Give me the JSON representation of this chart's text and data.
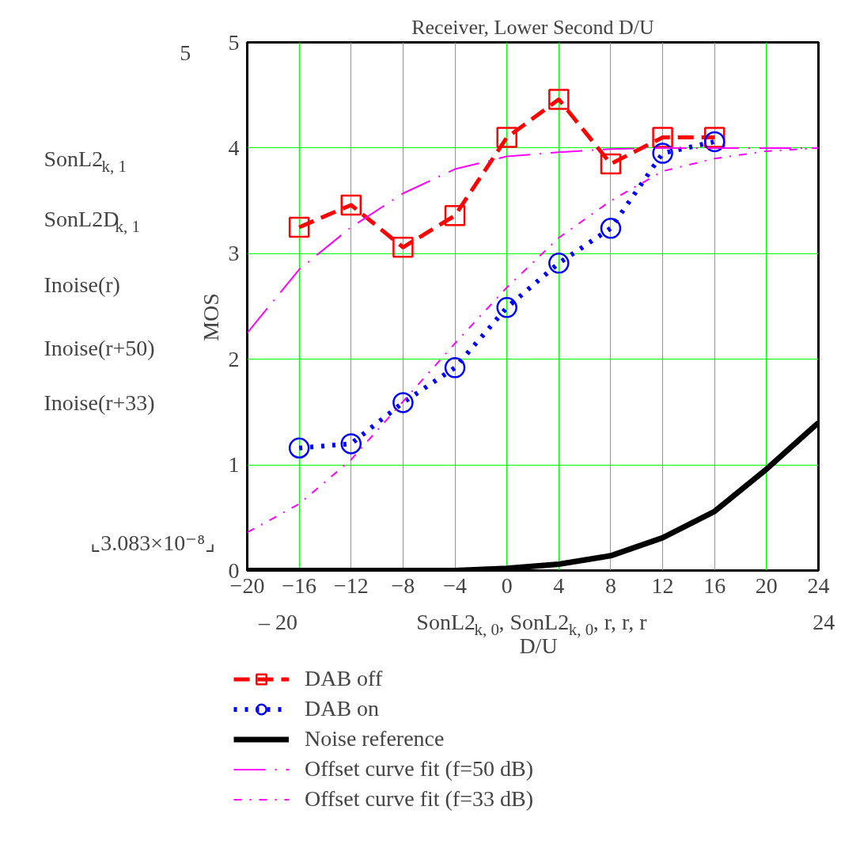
{
  "chart_data": {
    "type": "line",
    "title": "Receiver, Lower Second D/U",
    "xlabel": "D/U",
    "ylabel": "MOS",
    "x": [
      -16,
      -12,
      -8,
      -4,
      0,
      4,
      8,
      12,
      16
    ],
    "xlim": [
      -20,
      24
    ],
    "xticks": [
      {
        "value": -20,
        "label": "−20"
      },
      {
        "value": -16,
        "label": "−16"
      },
      {
        "value": -12,
        "label": "−12"
      },
      {
        "value": -8,
        "label": "−8"
      },
      {
        "value": -4,
        "label": "−4"
      },
      0,
      4,
      8,
      12,
      16,
      20,
      24
    ],
    "ylim": [
      0,
      5
    ],
    "yticks": [
      0,
      1,
      2,
      3,
      4,
      5
    ],
    "grid": true,
    "legend": "bottom",
    "series": [
      {
        "name": "DAB off",
        "color": "#ff0000",
        "marker": "square",
        "line_style": "dashed",
        "values": [
          3.25,
          3.46,
          3.06,
          3.36,
          4.1,
          4.46,
          3.85,
          4.1,
          4.1
        ]
      },
      {
        "name": "DAB on",
        "color": "#0000ff",
        "marker": "circle",
        "line_style": "dotted",
        "values": [
          1.16,
          1.2,
          1.59,
          1.92,
          2.49,
          2.91,
          3.24,
          3.95,
          4.06
        ]
      },
      {
        "name": "Noise reference",
        "color": "#000000",
        "marker": "none",
        "line_style": "solid",
        "x": [
          -20,
          -16,
          -12,
          -8,
          -4,
          0,
          4,
          8,
          12,
          16,
          20,
          24
        ],
        "values": [
          0,
          0,
          0,
          0,
          0,
          0.02,
          0.06,
          0.14,
          0.31,
          0.56,
          0.96,
          1.4
        ]
      },
      {
        "name": "Offset curve fit (f=50 dB)",
        "color": "#ff00ff",
        "marker": "none",
        "line_style": "dashed",
        "x": [
          -20,
          -16,
          -12,
          -8,
          -4,
          0,
          4,
          8,
          12,
          16,
          20,
          24
        ],
        "values": [
          2.25,
          2.85,
          3.25,
          3.57,
          3.8,
          3.92,
          3.96,
          3.99,
          4.0,
          4.0,
          4.0,
          4.0
        ]
      },
      {
        "name": "Offset curve fit (f=33 dB)",
        "color": "#ff00ff",
        "marker": "none",
        "line_style": "dashed",
        "x": [
          -20,
          -16,
          -12,
          -8,
          -4,
          0,
          4,
          8,
          12,
          16,
          20,
          24
        ],
        "values": [
          0.36,
          0.63,
          1.05,
          1.6,
          2.15,
          2.68,
          3.15,
          3.5,
          3.78,
          3.9,
          3.97,
          4.0
        ]
      }
    ],
    "annotations": [
      "5",
      "⌞3.083×10⁻⁸⌟",
      "– 20",
      "SonL2$_{k, 0}$, SonL2$_{k, 0}$, r, r, r",
      "24",
      "SonL2$_{k, 1}$",
      "SonL2D$_{k, 1}$",
      "Inoise(r)",
      "Inoise(r+50)",
      "Inoise(r+33)"
    ]
  }
}
